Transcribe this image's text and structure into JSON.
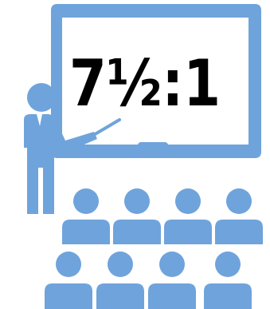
{
  "illustration": {
    "ratio_label": "7½:1",
    "icons": {
      "board": "whiteboard-icon",
      "teacher": "teacher-icon",
      "pointer": "pointer-stick-icon",
      "student": "student-icon"
    },
    "colors": {
      "primary": "#6fa3dc",
      "text": "#000000",
      "background": "#ffffff"
    },
    "student_rows": [
      {
        "count": 4
      },
      {
        "count": 4
      }
    ]
  }
}
